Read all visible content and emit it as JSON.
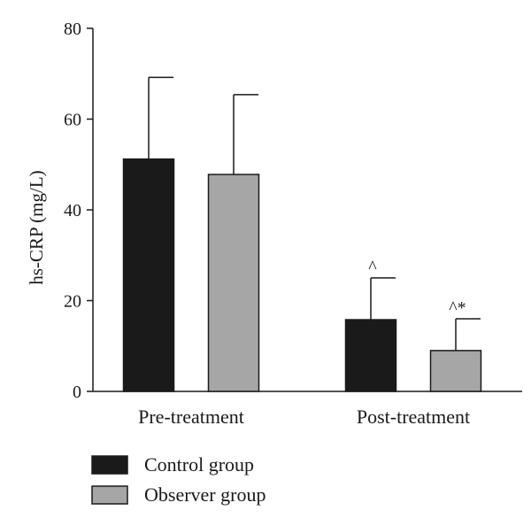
{
  "chart_data": {
    "type": "bar",
    "categories": [
      "Pre-treatment",
      "Post-treatment"
    ],
    "series": [
      {
        "name": "Control group",
        "values": [
          51.2,
          15.8
        ],
        "errors": [
          18.0,
          9.2
        ],
        "color": "#1a1a1a",
        "annotations": [
          "",
          "^"
        ]
      },
      {
        "name": "Observer group",
        "values": [
          47.8,
          9.0
        ],
        "errors": [
          17.6,
          7.0
        ],
        "color": "#a6a6a6",
        "annotations": [
          "",
          "^*"
        ]
      }
    ],
    "ylabel": "hs-CRP (mg/L)",
    "xlabel": "",
    "ylim": [
      0,
      80
    ],
    "yticks": [
      0,
      20,
      40,
      60,
      80
    ],
    "grid": false,
    "legend_position": "bottom-left"
  }
}
